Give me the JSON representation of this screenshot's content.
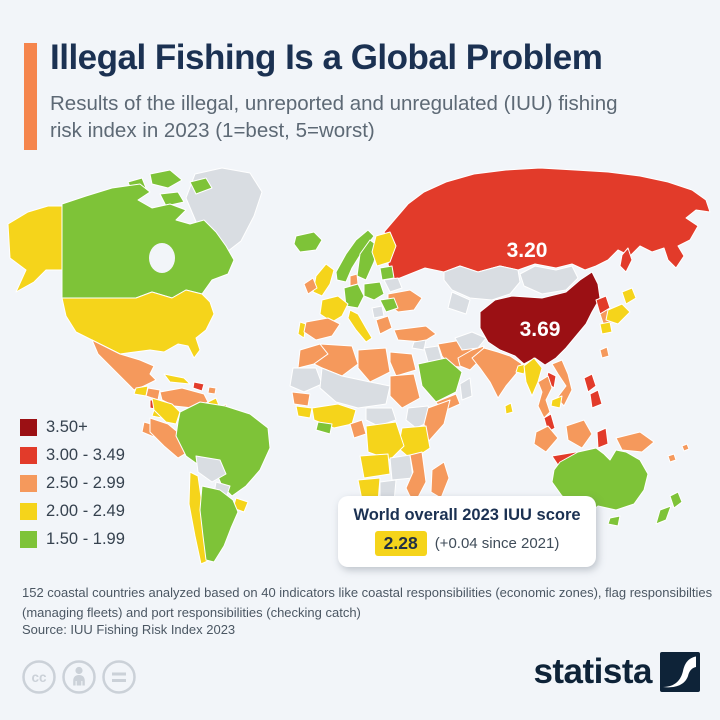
{
  "header": {
    "title": "Illegal Fishing Is a Global Problem",
    "subtitle": "Results of the illegal, unreported and unregulated (IUU) fishing risk index in 2023 (1=best, 5=worst)"
  },
  "chart_data": {
    "type": "choropleth_map",
    "title": "Illegal Fishing Is a Global Problem",
    "subtitle": "Results of the illegal, unreported and unregulated (IUU) fishing risk index in 2023 (1=best, 5=worst)",
    "unit": "IUU fishing risk index score, 1=best to 5=worst",
    "legend_position": "bottom-left",
    "legend": [
      {
        "bucket": "b5",
        "label": "3.50+",
        "color": "#9b1014"
      },
      {
        "bucket": "b4",
        "label": "3.00 - 3.49",
        "color": "#e23b2a"
      },
      {
        "bucket": "b3",
        "label": "2.50 - 2.99",
        "color": "#f5995c"
      },
      {
        "bucket": "b2",
        "label": "2.00 - 2.49",
        "color": "#f5d41b"
      },
      {
        "bucket": "b1",
        "label": "1.50 - 1.99",
        "color": "#7ec338"
      }
    ],
    "no_data_color": "#d9dde2",
    "annotations": [
      {
        "region": "russia",
        "value": "3.20"
      },
      {
        "region": "china",
        "value": "3.69"
      }
    ],
    "world_score": {
      "label": "World overall 2023 IUU score",
      "value": "2.28",
      "change": "(+0.04 since 2021)"
    },
    "regions": {
      "greenland": "none",
      "iceland": "b1",
      "canada": "b1",
      "usa": "b2",
      "mexico": "b3",
      "guatemala": "b2",
      "honduras": "b3",
      "nicaragua": "b4",
      "panama": "b2",
      "cuba": "b2",
      "hispaniola": "b4",
      "puerto-rico": "b3",
      "venezuela": "b3",
      "guyana": "b2",
      "suriname": "b3",
      "colombia": "b2",
      "ecuador": "b3",
      "peru": "b3",
      "brazil": "b1",
      "bolivia": "none",
      "paraguay": "none",
      "uruguay": "b2",
      "chile": "b2",
      "argentina": "b1",
      "norway": "b1",
      "sweden": "b1",
      "finland": "b2",
      "baltics": "b1",
      "uk": "b2",
      "ireland": "b3",
      "denmark": "b3",
      "germany": "b1",
      "poland": "b1",
      "belarus": "none",
      "ukraine": "b3",
      "france": "b2",
      "spain": "b3",
      "portugal": "b2",
      "italy": "b2",
      "romania": "b1",
      "serbia": "none",
      "greece": "b3",
      "morocco": "b3",
      "algeria": "b3",
      "libya": "b3",
      "egypt": "b3",
      "western-sahara": "none",
      "sahel": "none",
      "sudan": "b3",
      "senegal": "b3",
      "guinea": "b2",
      "nigeria": "b2",
      "ghana": "b1",
      "cameroon": "b3",
      "central-african-republic": "none",
      "ethiopia": "none",
      "somalia": "b3",
      "kenya-tanzania": "b2",
      "drc": "b2",
      "angola": "b2",
      "zambia-zimbabwe": "none",
      "mozambique": "b3",
      "namibia": "b2",
      "botswana": "none",
      "south-africa": "b3",
      "madagascar": "b3",
      "turkey": "b3",
      "syria": "none",
      "iraq": "none",
      "saudi-arabia": "b1",
      "yemen": "b3",
      "oman": "none",
      "iran": "b3",
      "afghanistan": "none",
      "russia": "b4",
      "kazakhstan": "none",
      "central-asia": "none",
      "mongolia": "none",
      "china": "b5",
      "north-korea": "b4",
      "south-korea": "b3",
      "japan": "b2",
      "taiwan": "b3",
      "pakistan": "b3",
      "india": "b3",
      "bangladesh": "b2",
      "sri-lanka": "b2",
      "myanmar": "b2",
      "thailand": "b3",
      "laos": "b4",
      "vietnam": "b3",
      "cambodia": "b2",
      "malaysia": "b4",
      "sumatra": "b3",
      "java": "b4",
      "borneo": "b3",
      "sulawesi": "b4",
      "philippines": "b4",
      "new-guinea": "b3",
      "pacific-islands": "b3",
      "australia": "b1",
      "new-zealand": "b1"
    }
  },
  "footnote": {
    "text": "152 coastal countries analyzed based on 40 indicators like coastal responsibilities (economic zones), flag responsibilties (managing fleets) and port responsibilities (checking catch)",
    "source": "Source: IUU Fishing Risk Index 2023"
  },
  "branding": {
    "logo_text": "statista"
  }
}
